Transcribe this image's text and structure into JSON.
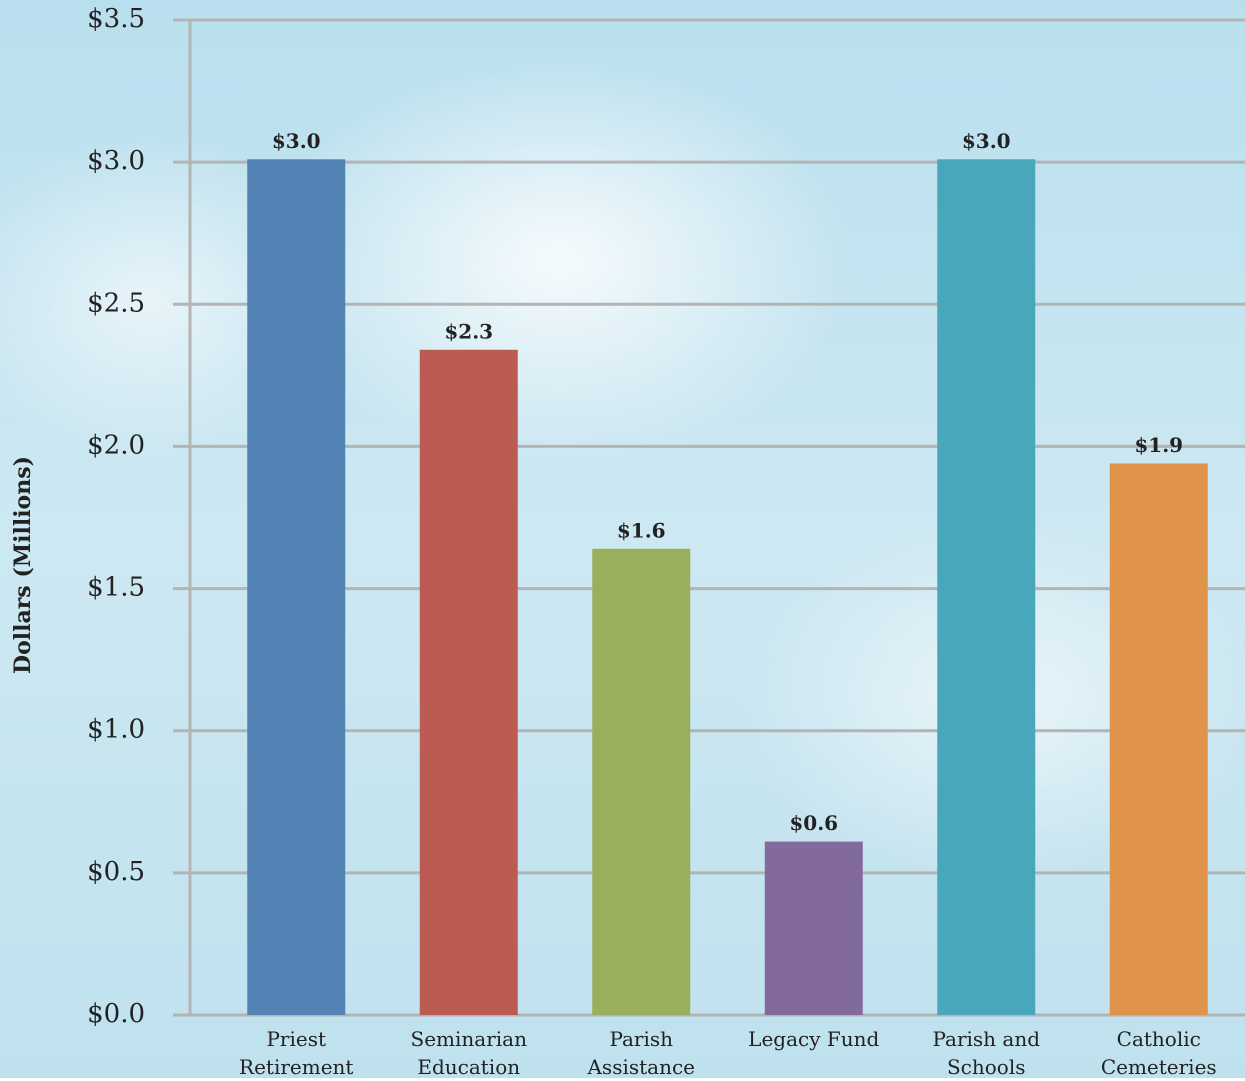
{
  "chart_data": {
    "type": "bar",
    "y_label": "Dollars (Millions)",
    "categories": [
      "Priest\nRetirement",
      "Seminarian\nEducation",
      "Parish Assistance",
      "Legacy Fund",
      "Parish and\nSchools",
      "Catholic\nCemeteries"
    ],
    "values": [
      3.01,
      2.34,
      1.64,
      0.61,
      3.01,
      1.94
    ],
    "value_labels": [
      "$3.0",
      "$2.3",
      "$1.6",
      "$0.6",
      "$3.0",
      "$1.9"
    ],
    "colors": [
      "#5383b5",
      "#bb5b51",
      "#9aaf5c",
      "#836a9c",
      "#48a7bb",
      "#e0944b"
    ],
    "ylim": [
      0,
      3.5
    ],
    "yticks": [
      {
        "value": 0,
        "label": "$0.0"
      },
      {
        "value": 0.5,
        "label": "$0.5"
      },
      {
        "value": 1,
        "label": "$1.0"
      },
      {
        "value": 1.5,
        "label": "$1.5"
      },
      {
        "value": 2,
        "label": "$2.0"
      },
      {
        "value": 2.5,
        "label": "$2.5"
      },
      {
        "value": 3,
        "label": "$3.0"
      },
      {
        "value": 3.5,
        "label": "$3.5"
      }
    ],
    "grid": true
  }
}
